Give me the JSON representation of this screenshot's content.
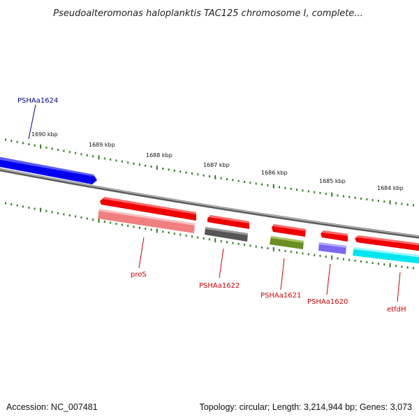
{
  "title": "Pseudoalteromonas haloplanktis TAC125 chromosome I, complete...",
  "ruler": {
    "labels": [
      "1690 kbp",
      "1689 kbp",
      "1688 kbp",
      "1687 kbp",
      "1686 kbp",
      "1685 kbp",
      "1684 kbp"
    ],
    "tick_color": "#2e7d1e"
  },
  "genes": [
    {
      "id": "PSHAa1624",
      "label": "PSHAa1624",
      "color": "#0000ff",
      "label_color": "#00008b"
    },
    {
      "id": "proS",
      "label": "proS",
      "color": "#ff0000",
      "label_color": "#cc0000",
      "cog_color": "#f08080"
    },
    {
      "id": "PSHAa1622",
      "label": "PSHAa1622",
      "color": "#ff0000",
      "label_color": "#cc0000",
      "cog_color": "#555555"
    },
    {
      "id": "PSHAa1621",
      "label": "PSHAa1621",
      "color": "#ff0000",
      "label_color": "#cc0000",
      "cog_color": "#6b8e23"
    },
    {
      "id": "PSHAa1620",
      "label": "PSHAa1620",
      "color": "#ff0000",
      "label_color": "#cc0000",
      "cog_color": "#7b68ee"
    },
    {
      "id": "etfdH",
      "label": "etfdH",
      "color": "#ff0000",
      "label_color": "#cc0000",
      "cog_color": "#00e5ee"
    }
  ],
  "backbone_color": "#808080",
  "footer": {
    "accession": "Accession: NC_007481",
    "summary": "Topology: circular; Length: 3,214,944 bp; Genes: 3,073"
  }
}
